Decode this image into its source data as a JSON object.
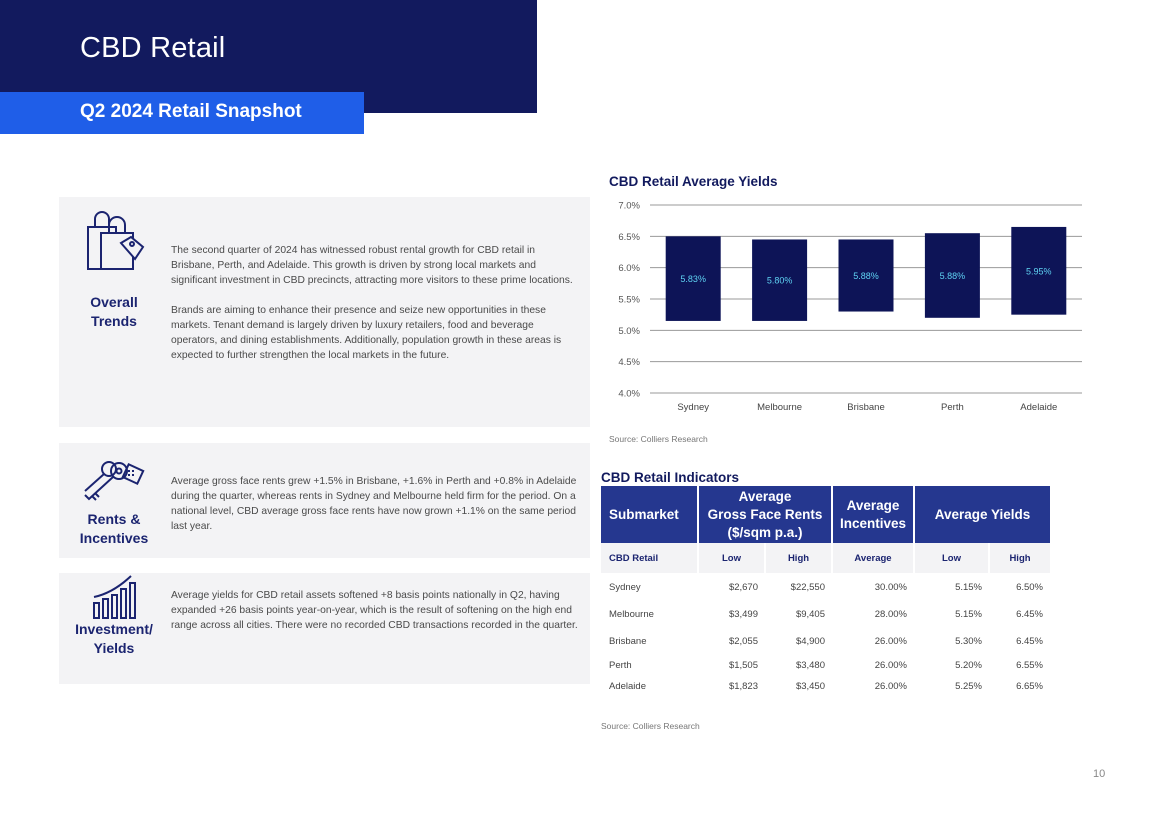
{
  "header": {
    "title": "CBD Retail",
    "subtitle": "Q2 2024 Retail Snapshot"
  },
  "panels": {
    "overall": {
      "icon": "shopping-bags-icon",
      "label_line1": "Overall",
      "label_line2": "Trends",
      "para1": "The second quarter of 2024 has witnessed robust rental growth for CBD retail in Brisbane, Perth, and Adelaide. This growth is driven by strong local markets and significant investment in CBD precincts, attracting more visitors to these prime locations.",
      "para2": "Brands are aiming to enhance their presence and seize new opportunities in these markets. Tenant demand is largely driven by luxury retailers, food and beverage operators, and dining establishments. Additionally, population growth in these areas is expected to further strengthen the local markets in the future."
    },
    "rents": {
      "icon": "keys-icon",
      "label_line1": "Rents &",
      "label_line2": "Incentives",
      "text": "Average gross face rents grew +1.5% in Brisbane, +1.6% in Perth and +0.8% in Adelaide during the quarter, whereas rents in Sydney and Melbourne held firm for the period. On a national level, CBD average gross face rents have now grown +1.1% on the same period last year."
    },
    "investment": {
      "icon": "bar-chart-growth-icon",
      "label_line1": "Investment/",
      "label_line2": "Yields",
      "text": "Average yields for CBD retail assets softened +8 basis points nationally in Q2, having expanded +26 basis points year-on-year, which is the result of softening on the high end range across all cities. There were no recorded CBD transactions recorded in the quarter."
    }
  },
  "chart_data": {
    "type": "bar",
    "title": "CBD Retail Average Yields",
    "categories": [
      "Sydney",
      "Melbourne",
      "Brisbane",
      "Perth",
      "Adelaide"
    ],
    "low": [
      5.15,
      5.15,
      5.3,
      5.2,
      5.25
    ],
    "high": [
      6.5,
      6.45,
      6.45,
      6.55,
      6.65
    ],
    "average_labels": [
      "5.83%",
      "5.80%",
      "5.88%",
      "5.88%",
      "5.95%"
    ],
    "ylim": [
      4.0,
      7.0
    ],
    "yticks": [
      "4.0%",
      "4.5%",
      "5.0%",
      "5.5%",
      "6.0%",
      "6.5%",
      "7.0%"
    ],
    "grid": true,
    "bar_color": "#0d1457",
    "source": "Source: Colliers Research"
  },
  "table": {
    "title": "CBD Retail Indicators",
    "headers": {
      "submarket": "Submarket",
      "rents_l1": "Average",
      "rents_l2": "Gross Face Rents",
      "rents_l3": "($/sqm p.a.)",
      "incentives_l1": "Average",
      "incentives_l2": "Incentives",
      "yields": "Average Yields"
    },
    "subheaders": {
      "name": "CBD Retail",
      "rent_low": "Low",
      "rent_high": "High",
      "incentive": "Average",
      "yield_low": "Low",
      "yield_high": "High"
    },
    "rows": [
      {
        "name": "Sydney",
        "rent_low": "$2,670",
        "rent_high": "$22,550",
        "incentive": "30.00%",
        "yield_low": "5.15%",
        "yield_high": "6.50%"
      },
      {
        "name": "Melbourne",
        "rent_low": "$3,499",
        "rent_high": "$9,405",
        "incentive": "28.00%",
        "yield_low": "5.15%",
        "yield_high": "6.45%"
      },
      {
        "name": "Brisbane",
        "rent_low": "$2,055",
        "rent_high": "$4,900",
        "incentive": "26.00%",
        "yield_low": "5.30%",
        "yield_high": "6.45%"
      },
      {
        "name": "Perth",
        "rent_low": "$1,505",
        "rent_high": "$3,480",
        "incentive": "26.00%",
        "yield_low": "5.20%",
        "yield_high": "6.55%"
      },
      {
        "name": "Adelaide",
        "rent_low": "$1,823",
        "rent_high": "$3,450",
        "incentive": "26.00%",
        "yield_low": "5.25%",
        "yield_high": "6.65%"
      }
    ],
    "source": "Source: Colliers Research"
  },
  "page_number": "10",
  "colors": {
    "navy": "#121a5e",
    "blue": "#1f5ee8",
    "table_header": "#25378f",
    "panel_bg": "#f3f3f5"
  }
}
